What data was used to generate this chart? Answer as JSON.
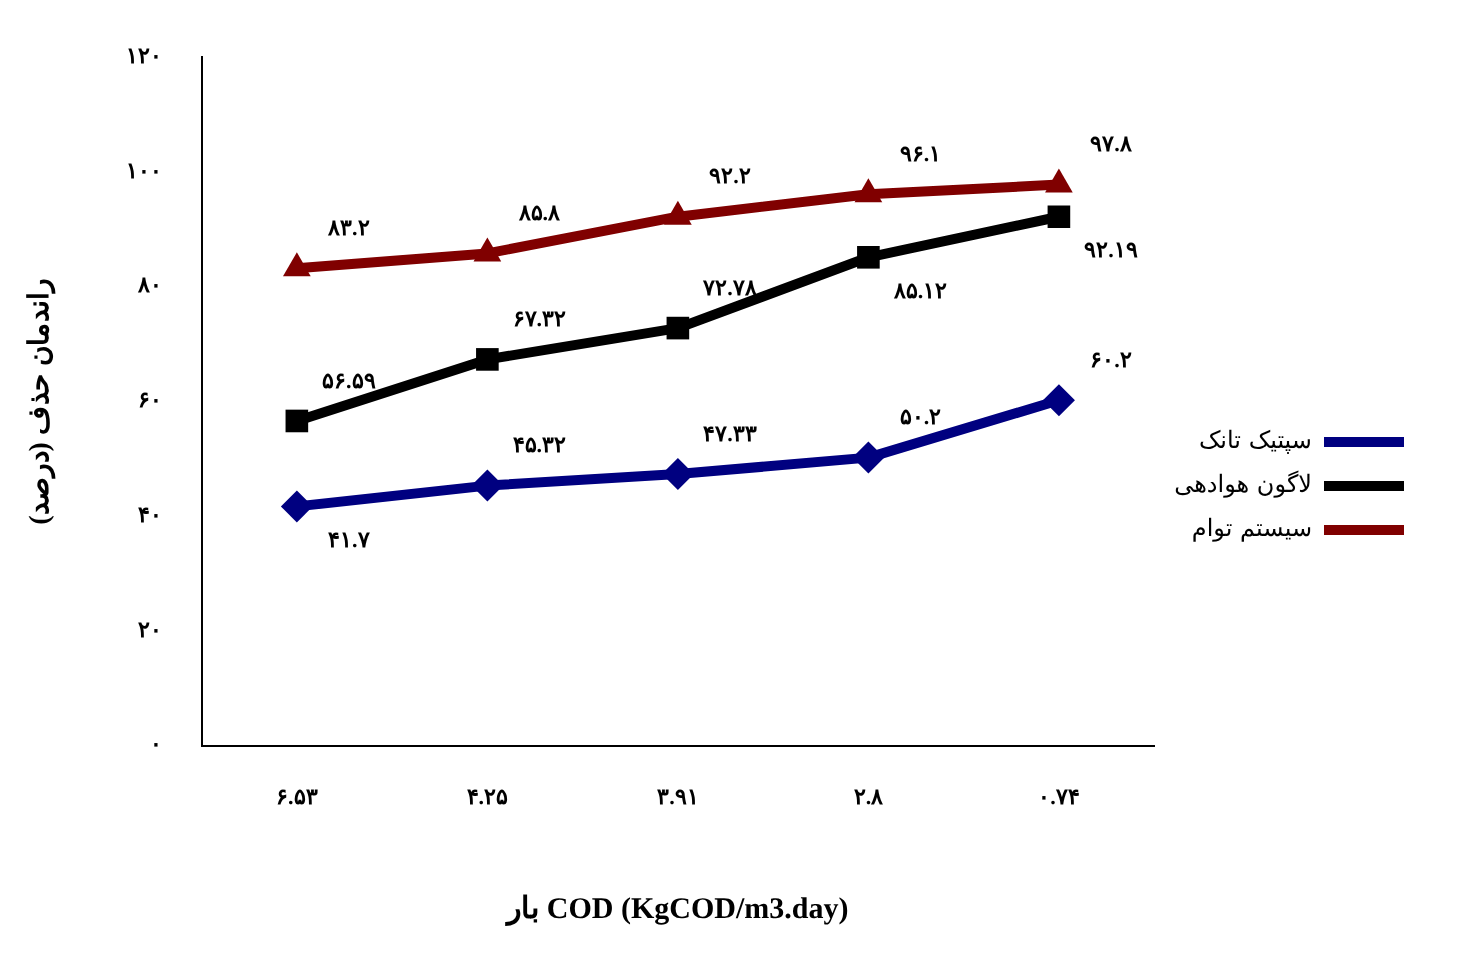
{
  "chart_data": {
    "type": "line",
    "xlabel": "بار COD (KgCOD/m3.day)",
    "ylabel": "راندمان حذف (درصد)",
    "categories": [
      "۶.۵۳",
      "۴.۲۵",
      "۳.۹۱",
      "۲.۸",
      "۰.۷۴"
    ],
    "series": [
      {
        "name": "سپتیک تانک",
        "color": "#000080",
        "marker": "diamond",
        "values": [
          41.7,
          45.32,
          47.33,
          50.2,
          60.2
        ],
        "value_labels": [
          "۴۱.۷",
          "۴۵.۳۲",
          "۴۷.۳۳",
          "۵۰.۲",
          "۶۰.۲"
        ]
      },
      {
        "name": "لاگون هوادهی",
        "color": "#000000",
        "marker": "square",
        "values": [
          56.59,
          67.32,
          72.78,
          85.12,
          92.19
        ],
        "value_labels": [
          "۵۶.۵۹",
          "۶۷.۳۲",
          "۷۲.۷۸",
          "۸۵.۱۲",
          "۹۲.۱۹"
        ]
      },
      {
        "name": "سیستم توام",
        "color": "#800000",
        "marker": "triangle",
        "values": [
          83.2,
          85.8,
          92.2,
          96.1,
          97.8
        ],
        "value_labels": [
          "۸۳.۲",
          "۸۵.۸",
          "۹۲.۲",
          "۹۶.۱",
          "۹۷.۸"
        ]
      }
    ],
    "ylim": [
      0,
      120
    ],
    "yticks": [
      {
        "value": 0,
        "label": "۰"
      },
      {
        "value": 20,
        "label": "۲۰"
      },
      {
        "value": 40,
        "label": "۴۰"
      },
      {
        "value": 60,
        "label": "۶۰"
      },
      {
        "value": 80,
        "label": "۸۰"
      },
      {
        "value": 100,
        "label": "۱۰۰"
      },
      {
        "value": 120,
        "label": "۱۲۰"
      }
    ],
    "grid": false,
    "legend": "right"
  }
}
